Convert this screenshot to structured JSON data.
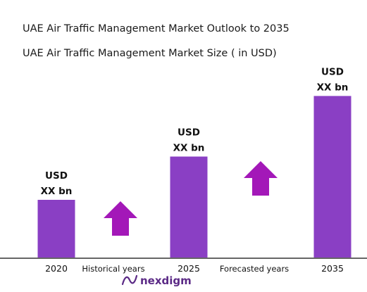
{
  "chart_data": {
    "type": "bar",
    "title": "UAE Air Traffic Management Market Outlook to 2035",
    "subtitle": "UAE Air Traffic Management Market Size ( in USD)",
    "categories": [
      "2020",
      "2025",
      "2035"
    ],
    "values": [
      1.0,
      1.75,
      2.8
    ],
    "value_labels": [
      {
        "line1": "USD",
        "line2": "XX bn"
      },
      {
        "line1": "USD",
        "line2": "XX bn"
      },
      {
        "line1": "USD",
        "line2": "XX bn"
      }
    ],
    "period_labels": [
      "Historical years",
      "Forecasted years"
    ],
    "ylim": [
      0,
      3
    ],
    "grid": false,
    "colors": {
      "bar": "#8a3fc4",
      "arrow": "#a318b8",
      "baseline": "#333333",
      "logo": "#5b2a86"
    }
  },
  "brand": {
    "name": "nexdigm",
    "icon": "nexdigm-logo-icon"
  }
}
